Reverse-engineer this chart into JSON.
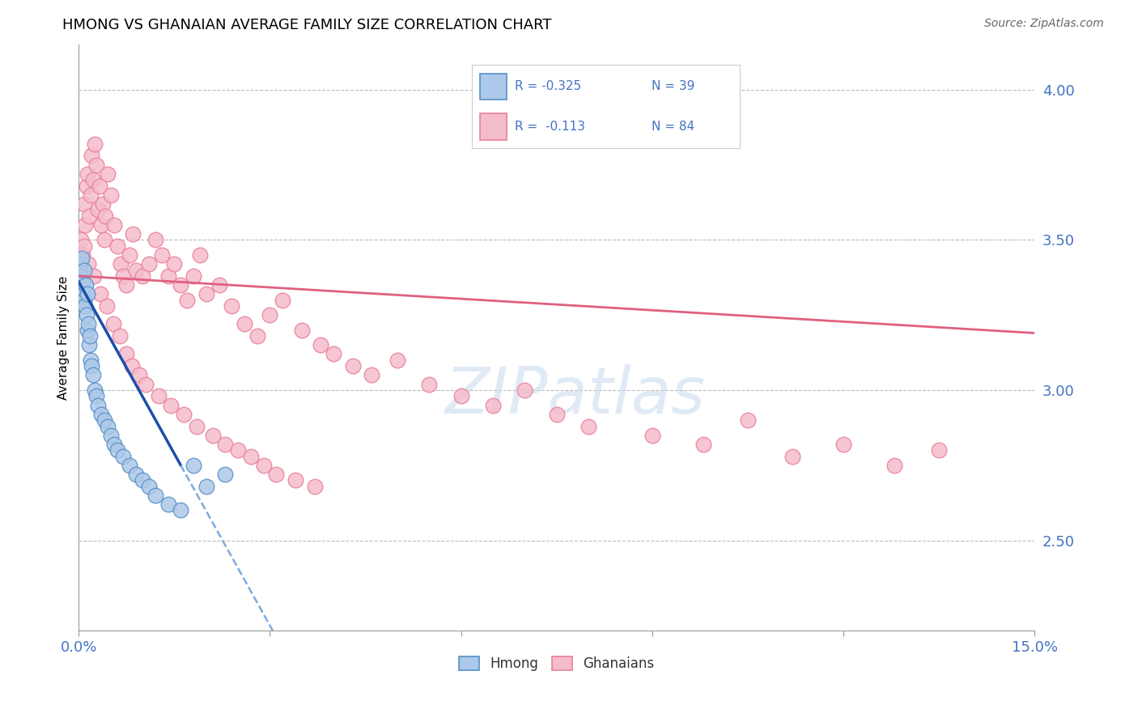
{
  "title": "HMONG VS GHANAIAN AVERAGE FAMILY SIZE CORRELATION CHART",
  "source": "Source: ZipAtlas.com",
  "ylabel": "Average Family Size",
  "xmin": 0.0,
  "xmax": 15.0,
  "ymin": 2.2,
  "ymax": 4.15,
  "yticks": [
    2.5,
    3.0,
    3.5,
    4.0
  ],
  "hmong_color": "#adc8e8",
  "hmong_edge_color": "#5590c8",
  "ghana_color": "#f5bccb",
  "ghana_edge_color": "#e8809a",
  "hmong_trend_color": "#1a4faa",
  "hmong_trend_dash_color": "#7aabdc",
  "ghana_trend_color": "#e06080",
  "hmong_trend_start_y": 3.36,
  "hmong_trend_end_x": 1.6,
  "hmong_trend_end_y": 2.75,
  "hmong_dash_end_x": 8.5,
  "ghana_trend_start_y": 3.38,
  "ghana_trend_end_y": 3.19,
  "hmong_x": [
    0.02,
    0.03,
    0.04,
    0.05,
    0.06,
    0.07,
    0.08,
    0.09,
    0.1,
    0.11,
    0.12,
    0.13,
    0.14,
    0.15,
    0.16,
    0.17,
    0.18,
    0.2,
    0.22,
    0.25,
    0.28,
    0.3,
    0.35,
    0.4,
    0.45,
    0.5,
    0.55,
    0.6,
    0.7,
    0.8,
    0.9,
    1.0,
    1.1,
    1.2,
    1.4,
    1.6,
    1.8,
    2.0,
    2.3
  ],
  "hmong_y": [
    3.42,
    3.38,
    3.35,
    3.44,
    3.36,
    3.32,
    3.4,
    3.3,
    3.28,
    3.35,
    3.25,
    3.2,
    3.32,
    3.22,
    3.15,
    3.18,
    3.1,
    3.08,
    3.05,
    3.0,
    2.98,
    2.95,
    2.92,
    2.9,
    2.88,
    2.85,
    2.82,
    2.8,
    2.78,
    2.75,
    2.72,
    2.7,
    2.68,
    2.65,
    2.62,
    2.6,
    2.75,
    2.68,
    2.72
  ],
  "ghana_x": [
    0.04,
    0.06,
    0.08,
    0.1,
    0.12,
    0.14,
    0.16,
    0.18,
    0.2,
    0.22,
    0.25,
    0.28,
    0.3,
    0.32,
    0.35,
    0.38,
    0.4,
    0.42,
    0.45,
    0.5,
    0.55,
    0.6,
    0.65,
    0.7,
    0.75,
    0.8,
    0.85,
    0.9,
    1.0,
    1.1,
    1.2,
    1.3,
    1.4,
    1.5,
    1.6,
    1.7,
    1.8,
    1.9,
    2.0,
    2.2,
    2.4,
    2.6,
    2.8,
    3.0,
    3.2,
    3.5,
    3.8,
    4.0,
    4.3,
    4.6,
    5.0,
    5.5,
    6.0,
    6.5,
    7.0,
    7.5,
    8.0,
    9.0,
    9.8,
    10.5,
    11.2,
    12.0,
    12.8,
    13.5,
    0.09,
    0.15,
    0.24,
    0.34,
    0.44,
    0.54,
    0.64,
    0.74,
    0.84,
    0.95,
    1.05,
    1.25,
    1.45,
    1.65,
    1.85,
    2.1,
    2.3,
    2.5,
    2.7,
    2.9,
    3.1,
    3.4,
    3.7
  ],
  "ghana_y": [
    3.5,
    3.45,
    3.62,
    3.55,
    3.68,
    3.72,
    3.58,
    3.65,
    3.78,
    3.7,
    3.82,
    3.75,
    3.6,
    3.68,
    3.55,
    3.62,
    3.5,
    3.58,
    3.72,
    3.65,
    3.55,
    3.48,
    3.42,
    3.38,
    3.35,
    3.45,
    3.52,
    3.4,
    3.38,
    3.42,
    3.5,
    3.45,
    3.38,
    3.42,
    3.35,
    3.3,
    3.38,
    3.45,
    3.32,
    3.35,
    3.28,
    3.22,
    3.18,
    3.25,
    3.3,
    3.2,
    3.15,
    3.12,
    3.08,
    3.05,
    3.1,
    3.02,
    2.98,
    2.95,
    3.0,
    2.92,
    2.88,
    2.85,
    2.82,
    2.9,
    2.78,
    2.82,
    2.75,
    2.8,
    3.48,
    3.42,
    3.38,
    3.32,
    3.28,
    3.22,
    3.18,
    3.12,
    3.08,
    3.05,
    3.02,
    2.98,
    2.95,
    2.92,
    2.88,
    2.85,
    2.82,
    2.8,
    2.78,
    2.75,
    2.72,
    2.7,
    2.68
  ]
}
